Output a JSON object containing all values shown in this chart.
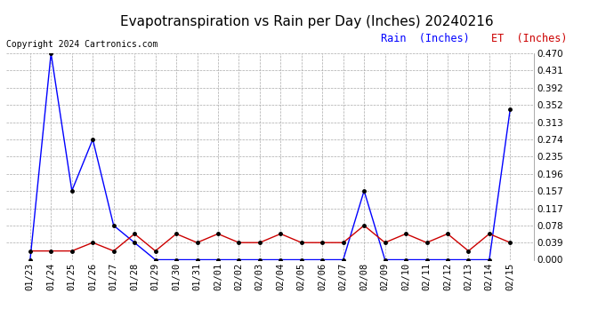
{
  "title": "Evapotranspiration vs Rain per Day (Inches) 20240216",
  "copyright": "Copyright 2024 Cartronics.com",
  "x_labels": [
    "01/23",
    "01/24",
    "01/25",
    "01/26",
    "01/27",
    "01/28",
    "01/29",
    "01/30",
    "01/31",
    "02/01",
    "02/02",
    "02/03",
    "02/04",
    "02/05",
    "02/06",
    "02/07",
    "02/08",
    "02/09",
    "02/10",
    "02/11",
    "02/12",
    "02/13",
    "02/14",
    "02/15"
  ],
  "rain_values": [
    0.0,
    0.47,
    0.157,
    0.274,
    0.078,
    0.039,
    0.0,
    0.0,
    0.0,
    0.0,
    0.0,
    0.0,
    0.0,
    0.0,
    0.0,
    0.0,
    0.157,
    0.0,
    0.0,
    0.0,
    0.0,
    0.0,
    0.0,
    0.343
  ],
  "et_values": [
    0.02,
    0.02,
    0.02,
    0.039,
    0.02,
    0.059,
    0.02,
    0.059,
    0.039,
    0.059,
    0.039,
    0.039,
    0.059,
    0.039,
    0.039,
    0.039,
    0.078,
    0.039,
    0.059,
    0.039,
    0.059,
    0.02,
    0.059,
    0.039
  ],
  "rain_color": "#0000ff",
  "et_color": "#cc0000",
  "marker_color": "#000000",
  "background_color": "#ffffff",
  "grid_color": "#aaaaaa",
  "ylim": [
    0.0,
    0.47
  ],
  "yticks": [
    0.0,
    0.039,
    0.078,
    0.117,
    0.157,
    0.196,
    0.235,
    0.274,
    0.313,
    0.352,
    0.392,
    0.431,
    0.47
  ],
  "legend_rain": "Rain  (Inches)",
  "legend_et": "ET  (Inches)",
  "title_fontsize": 11,
  "tick_fontsize": 7.5,
  "copyright_fontsize": 7
}
